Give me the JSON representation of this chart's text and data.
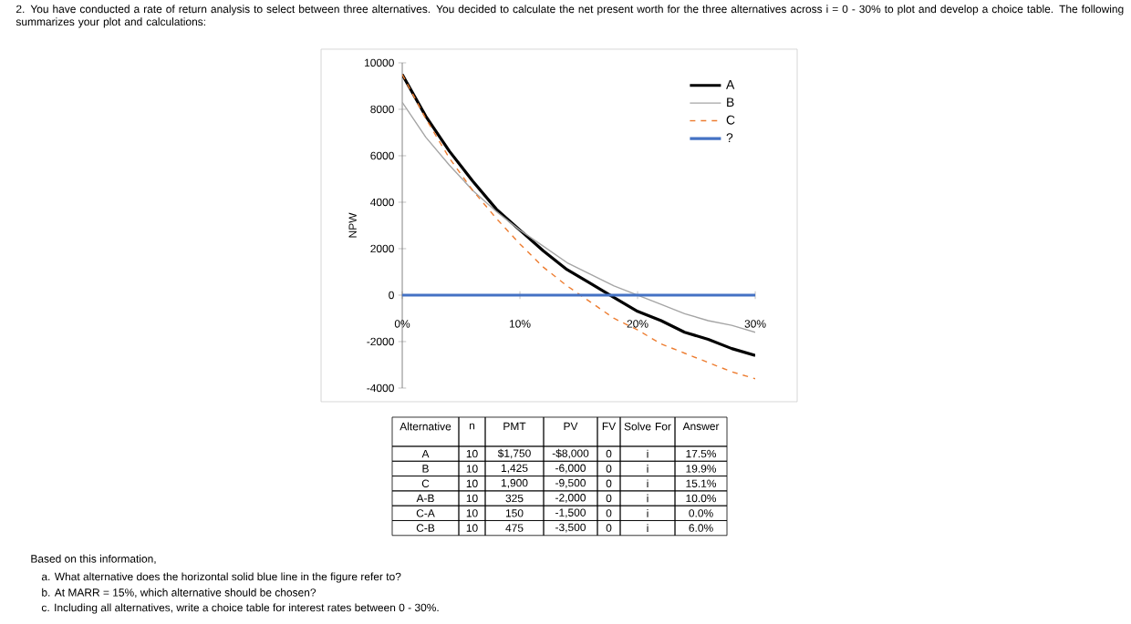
{
  "chart_data": {
    "type": "line",
    "ylabel": "NPW",
    "x": [
      0,
      2,
      4,
      6,
      8,
      10,
      12,
      14,
      16,
      18,
      20,
      22,
      24,
      26,
      28,
      30
    ],
    "series": [
      {
        "name": "A",
        "color": "#000000",
        "values": [
          9500,
          7700,
          6200,
          4900,
          3700,
          2800,
          1900,
          1100,
          500,
          -100,
          -700,
          -1100,
          -1600,
          -1900,
          -2300,
          -2600
        ]
      },
      {
        "name": "B",
        "color": "#a5a5a5",
        "values": [
          8300,
          6800,
          5600,
          4500,
          3600,
          2800,
          2100,
          1400,
          900,
          400,
          0,
          -400,
          -800,
          -1100,
          -1300,
          -1600
        ]
      },
      {
        "name": "C",
        "color": "#ed7d31",
        "line_style": "dashed",
        "values": [
          9500,
          7600,
          5900,
          4500,
          3300,
          2200,
          1200,
          400,
          -300,
          -1000,
          -1500,
          -2100,
          -2500,
          -2900,
          -3300,
          -3600
        ]
      },
      {
        "name": "?",
        "color": "#4472c4",
        "values": [
          0,
          0,
          0,
          0,
          0,
          0,
          0,
          0,
          0,
          0,
          0,
          0,
          0,
          0,
          0,
          0
        ]
      }
    ],
    "xlim": [
      0,
      30
    ],
    "ylim": [
      -4000,
      10000
    ],
    "xticks": [
      {
        "value": 0,
        "label": "0%"
      },
      {
        "value": 10,
        "label": "10%"
      },
      {
        "value": 20,
        "label": "20%"
      },
      {
        "value": 30,
        "label": "30%"
      }
    ],
    "yticks": [
      -4000,
      -2000,
      0,
      2000,
      4000,
      6000,
      8000,
      10000
    ],
    "legend": "top right",
    "annotations": [
      "2. You have conducted a rate of return analysis to select between three alternatives. You decided to calculate the net present worth for the three alternatives across i = 0 - 30% to plot and develop a choice table. The following summarizes your plot and calculations:",
      "Alternative",
      "n",
      "PMT",
      "PV",
      "FV",
      "Solve For",
      "Answer",
      "A",
      "10",
      "$1,750",
      "-$8,000",
      "0",
      "i",
      "17.5%",
      "B",
      "10",
      "1,425",
      "-6,000",
      "0",
      "i",
      "19.9%",
      "C",
      "10",
      "1,900",
      "-9,500",
      "0",
      "i",
      "15.1%",
      "A-B",
      "10",
      "325",
      "-2,000",
      "0",
      "i",
      "10.0%",
      "C-A",
      "10",
      "150",
      "-1,500",
      "0",
      "i",
      "0.0%",
      "C-B",
      "10",
      "475",
      "-3,500",
      "0",
      "i",
      "6.0%",
      "Based on this information,",
      "a. What alternative does the horizontal solid blue line in the figure refer to?",
      "b. At MARR = 15%, which alternative should be chosen?",
      "c. Including all alternatives, write a choice table for interest rates between 0 - 30%."
    ]
  }
}
